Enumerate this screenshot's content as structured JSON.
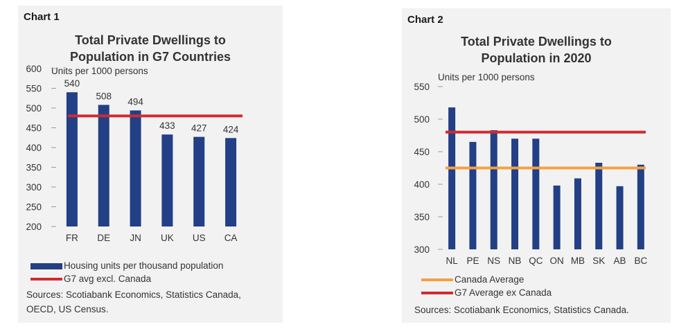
{
  "charts": [
    {
      "label": "Chart 1",
      "title_line1": "Total Private Dwellings to",
      "title_line2": "Population in G7 Countries",
      "units": "Units per 1000 persons",
      "legend": {
        "bars": "Housing units per thousand population",
        "line": "G7 avg excl. Canada"
      },
      "sources": [
        "Sources: Scotiabank Economics, Statistics Canada,",
        "OECD, US Census."
      ]
    },
    {
      "label": "Chart 2",
      "title_line1": "Total Private Dwellings to",
      "title_line2": "Population in 2020",
      "units": "Units per 1000 persons",
      "legend": {
        "line1": "Canada Average",
        "line2": "G7 Average ex Canada"
      },
      "sources": [
        "Sources: Scotiabank Economics, Statistics Canada."
      ]
    }
  ],
  "colors": {
    "bar": "#233f85",
    "red": "#d02b32",
    "orange": "#f4a044",
    "panel": "#f2f2f2"
  },
  "chart_data": [
    {
      "type": "bar",
      "title": "Total Private Dwellings to Population in G7 Countries",
      "ylabel": "Units per 1000 persons",
      "categories": [
        "FR",
        "DE",
        "JN",
        "UK",
        "US",
        "CA"
      ],
      "series": [
        {
          "name": "Housing units per thousand population",
          "values": [
            540,
            508,
            494,
            433,
            427,
            424
          ]
        }
      ],
      "reference_lines": [
        {
          "name": "G7 avg excl. Canada",
          "value": 480
        }
      ],
      "data_labels": [
        "540",
        "508",
        "494",
        "433",
        "427",
        "424"
      ],
      "ylim": [
        200,
        600
      ],
      "yticks": [
        200,
        250,
        300,
        350,
        400,
        450,
        500,
        550,
        600
      ],
      "grid": false,
      "legend": "bottom"
    },
    {
      "type": "bar",
      "title": "Total Private Dwellings to Population in 2020",
      "ylabel": "Units per 1000 persons",
      "categories": [
        "NL",
        "PE",
        "NS",
        "NB",
        "QC",
        "ON",
        "MB",
        "SK",
        "AB",
        "BC"
      ],
      "series": [
        {
          "name": "",
          "values": [
            518,
            465,
            483,
            470,
            470,
            398,
            409,
            433,
            397,
            430
          ]
        }
      ],
      "reference_lines": [
        {
          "name": "Canada Average",
          "value": 425
        },
        {
          "name": "G7 Average ex Canada",
          "value": 480
        }
      ],
      "ylim": [
        300,
        550
      ],
      "yticks": [
        300,
        350,
        400,
        450,
        500,
        550
      ],
      "grid": false,
      "legend": "bottom"
    }
  ]
}
